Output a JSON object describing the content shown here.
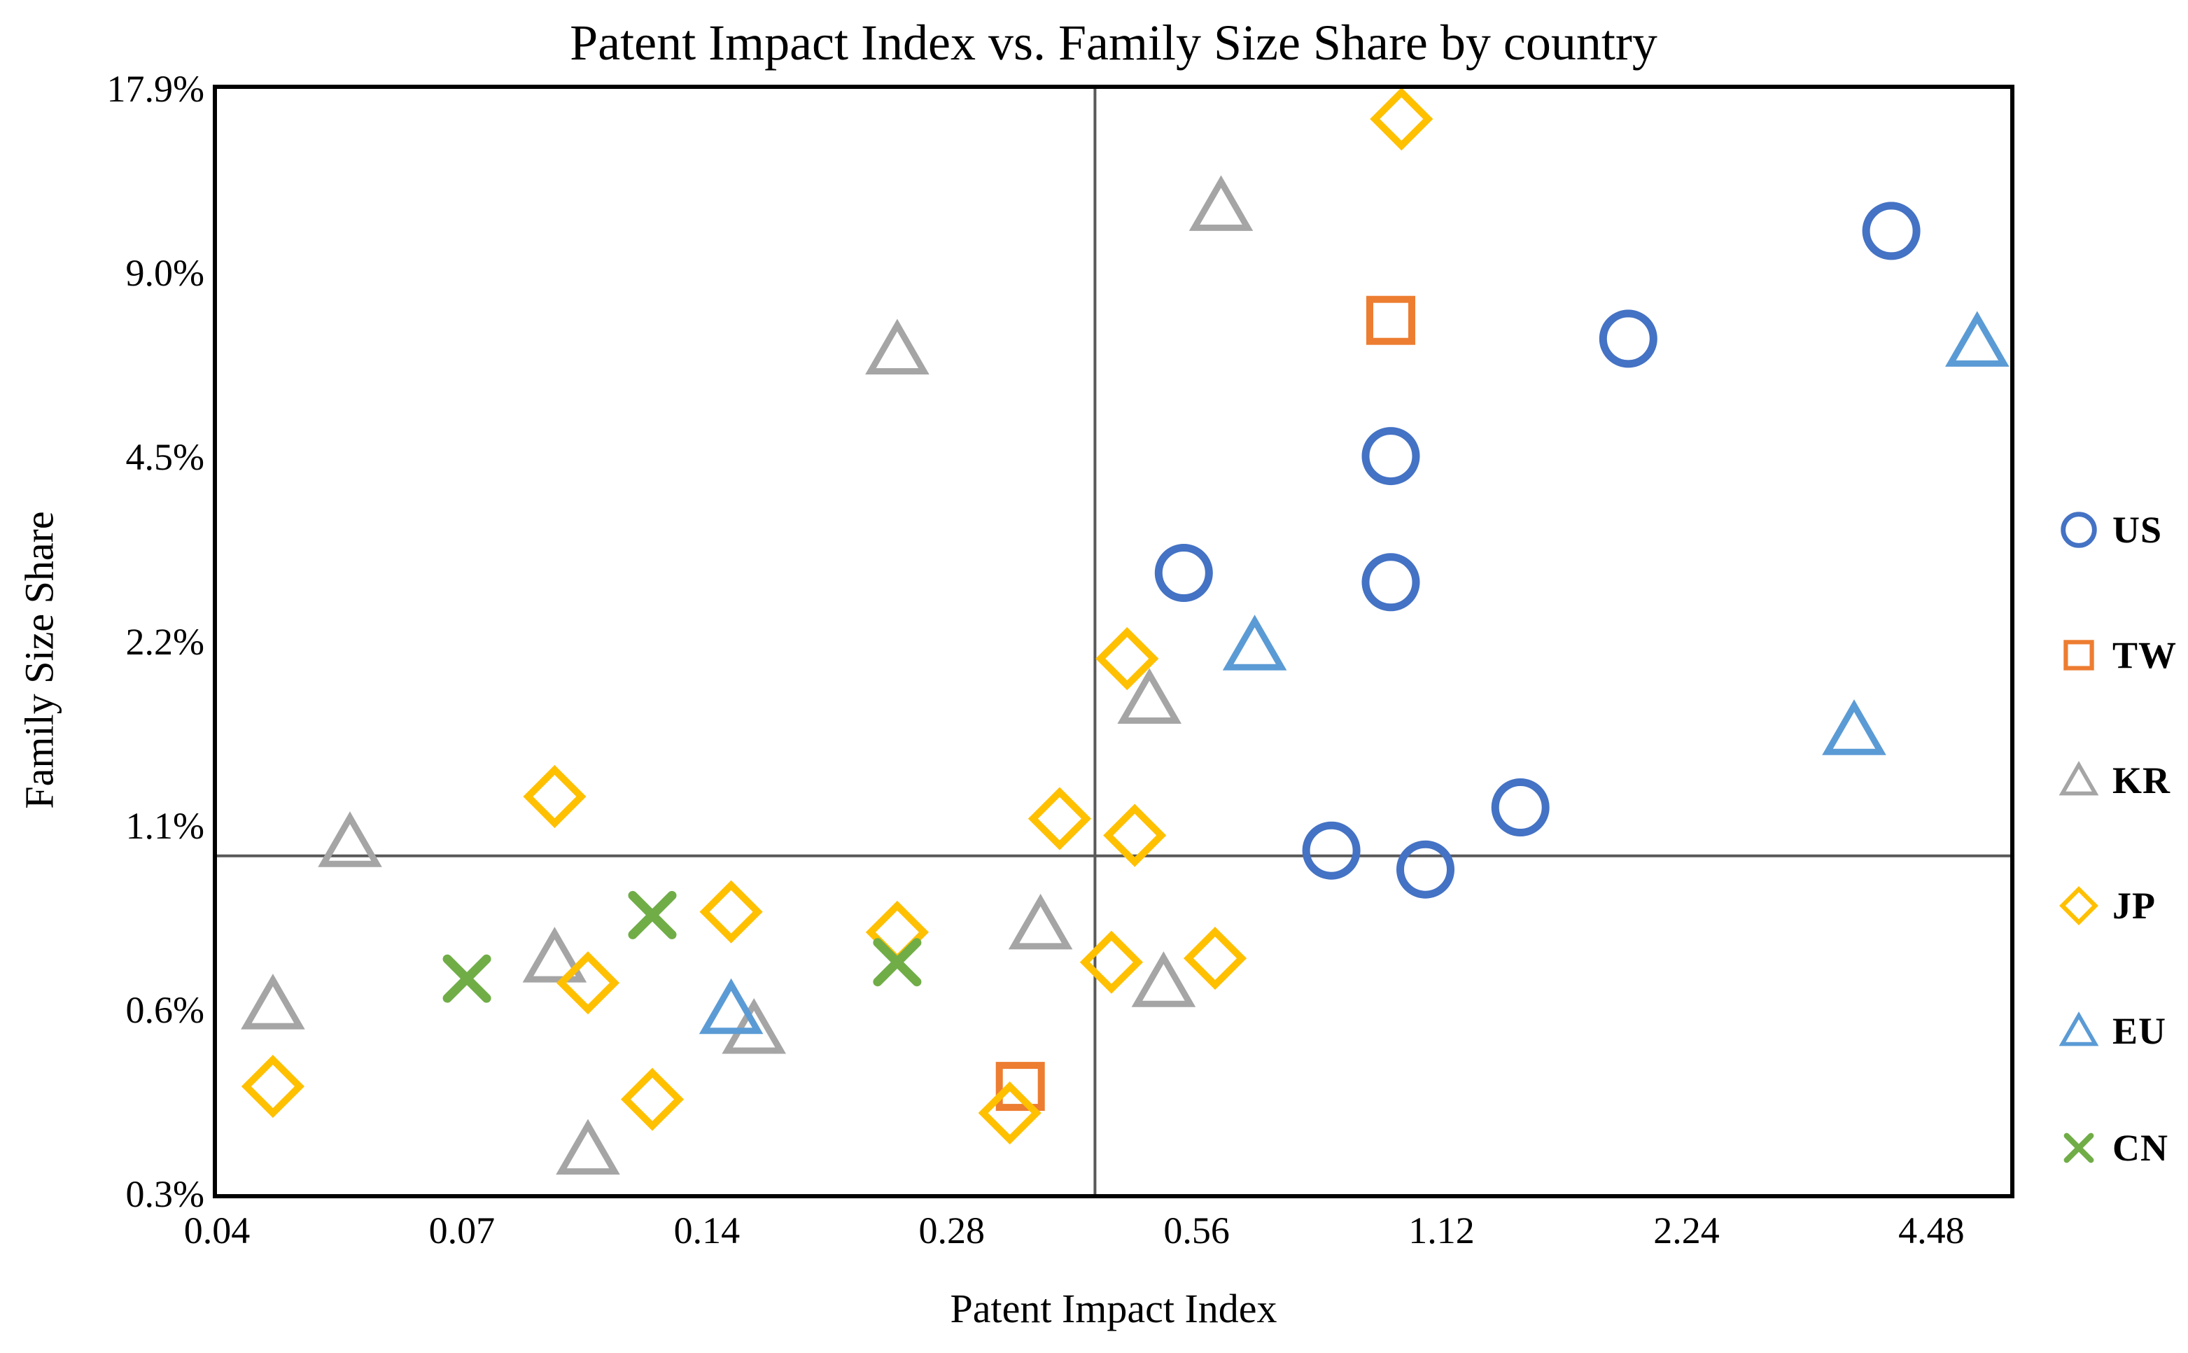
{
  "chart_data": {
    "type": "scatter",
    "title": "Patent Impact Index vs. Family Size Share by country",
    "xlabel": "Patent Impact Index",
    "ylabel": "Family Size Share",
    "x_axis": {
      "scale": "log2",
      "min": 0.035,
      "max": 5.6,
      "ticks": [
        {
          "v": 0.035,
          "label": "0.04"
        },
        {
          "v": 0.07,
          "label": "0.07"
        },
        {
          "v": 0.14,
          "label": "0.14"
        },
        {
          "v": 0.28,
          "label": "0.28"
        },
        {
          "v": 0.56,
          "label": "0.56"
        },
        {
          "v": 1.12,
          "label": "1.12"
        },
        {
          "v": 2.24,
          "label": "2.24"
        },
        {
          "v": 4.48,
          "label": "4.48"
        }
      ]
    },
    "y_axis": {
      "scale": "log2",
      "unit": "percent",
      "min": 0.28,
      "max": 17.92,
      "ticks": [
        {
          "v": 17.92,
          "label": "17.9%"
        },
        {
          "v": 8.96,
          "label": "9.0%"
        },
        {
          "v": 4.48,
          "label": "4.5%"
        },
        {
          "v": 2.24,
          "label": "2.2%"
        },
        {
          "v": 1.12,
          "label": "1.1%"
        },
        {
          "v": 0.56,
          "label": "0.6%"
        },
        {
          "v": 0.28,
          "label": "0.3%"
        }
      ]
    },
    "reference_lines": {
      "vertical_x": 0.42,
      "horizontal_y_percent": 1.0,
      "color": "#595959"
    },
    "grid": false,
    "legend_position": "right",
    "series": [
      {
        "name": "US",
        "marker": "circle",
        "color": "#4472C4",
        "points": [
          [
            0.54,
            2.9
          ],
          [
            0.97,
            4.5
          ],
          [
            0.97,
            2.8
          ],
          [
            0.82,
            1.02
          ],
          [
            1.07,
            0.95
          ],
          [
            1.4,
            1.2
          ],
          [
            1.9,
            7.0
          ],
          [
            4.0,
            10.5
          ]
        ]
      },
      {
        "name": "TW",
        "marker": "square",
        "color": "#ED7D31",
        "points": [
          [
            0.97,
            7.5
          ],
          [
            0.34,
            0.42
          ]
        ]
      },
      {
        "name": "KR",
        "marker": "triangle",
        "color": "#A5A5A5",
        "points": [
          [
            0.041,
            0.57
          ],
          [
            0.051,
            1.05
          ],
          [
            0.091,
            0.68
          ],
          [
            0.1,
            0.33
          ],
          [
            0.16,
            0.52
          ],
          [
            0.24,
            6.7
          ],
          [
            0.36,
            0.77
          ],
          [
            0.49,
            1.8
          ],
          [
            0.51,
            0.62
          ],
          [
            0.6,
            11.5
          ]
        ]
      },
      {
        "name": "JP",
        "marker": "diamond",
        "color": "#FFC000",
        "points": [
          [
            0.041,
            0.42
          ],
          [
            0.091,
            1.25
          ],
          [
            0.1,
            0.62
          ],
          [
            0.12,
            0.4
          ],
          [
            0.15,
            0.81
          ],
          [
            0.24,
            0.75
          ],
          [
            0.33,
            0.38
          ],
          [
            0.38,
            1.15
          ],
          [
            0.44,
            0.67
          ],
          [
            0.46,
            2.1
          ],
          [
            0.47,
            1.08
          ],
          [
            0.59,
            0.68
          ],
          [
            1.0,
            16.0
          ]
        ]
      },
      {
        "name": "EU",
        "marker": "triangle",
        "color": "#5B9BD5",
        "points": [
          [
            0.15,
            0.56
          ],
          [
            0.66,
            2.2
          ],
          [
            3.6,
            1.6
          ],
          [
            5.1,
            6.9
          ]
        ]
      },
      {
        "name": "CN",
        "marker": "x",
        "color": "#70AD47",
        "points": [
          [
            0.071,
            0.63
          ],
          [
            0.12,
            0.8
          ],
          [
            0.24,
            0.67
          ]
        ]
      }
    ]
  },
  "frame": {
    "border_color": "#000000",
    "background": "#ffffff"
  }
}
